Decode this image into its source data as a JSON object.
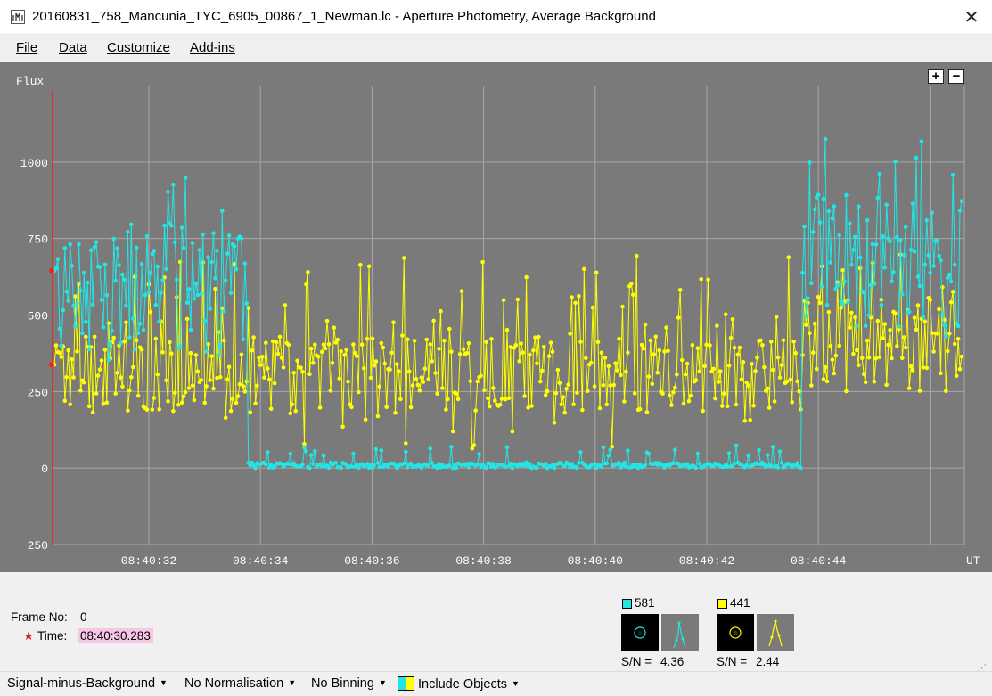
{
  "window": {
    "title": "20160831_758_Mancunia_TYC_6905_00867_1_Newman.lc - Aperture Photometry, Average Background"
  },
  "menu": [
    "File",
    "Data",
    "Customize",
    "Add-ins"
  ],
  "zoom": {
    "plus": "+",
    "minus": "−"
  },
  "chart_data": {
    "type": "line",
    "ylabel": "Flux",
    "xlabel": "UT",
    "ylim": [
      -250,
      1250
    ],
    "yticks": [
      "−250",
      "0",
      "250",
      "500",
      "750",
      "1000"
    ],
    "xticks": [
      "08:40:32",
      "08:40:34",
      "08:40:36",
      "08:40:38",
      "08:40:40",
      "08:40:42",
      "08:40:44"
    ],
    "grid": true,
    "background": "#7a7a7a",
    "cursor_frame": 0,
    "series": [
      {
        "name": "581",
        "color": "#22e6e6",
        "marker": "dot"
      },
      {
        "name": "441",
        "color": "#ffff00",
        "marker": "dot"
      }
    ]
  },
  "info": {
    "frame_label": "Frame No:",
    "frame_value": "0",
    "time_label": "Time:",
    "time_value": "08:40:30.283",
    "star": "★"
  },
  "objects": [
    {
      "label": "581",
      "color": "#22e6e6",
      "sn_label": "S/N =",
      "sn_value": "4.36"
    },
    {
      "label": "441",
      "color": "#ffff00",
      "sn_label": "S/N =",
      "sn_value": "2.44"
    }
  ],
  "status": {
    "signal": "Signal-minus-Background",
    "normalisation": "No Normalisation",
    "binning": "No Binning",
    "include": "Include Objects"
  }
}
